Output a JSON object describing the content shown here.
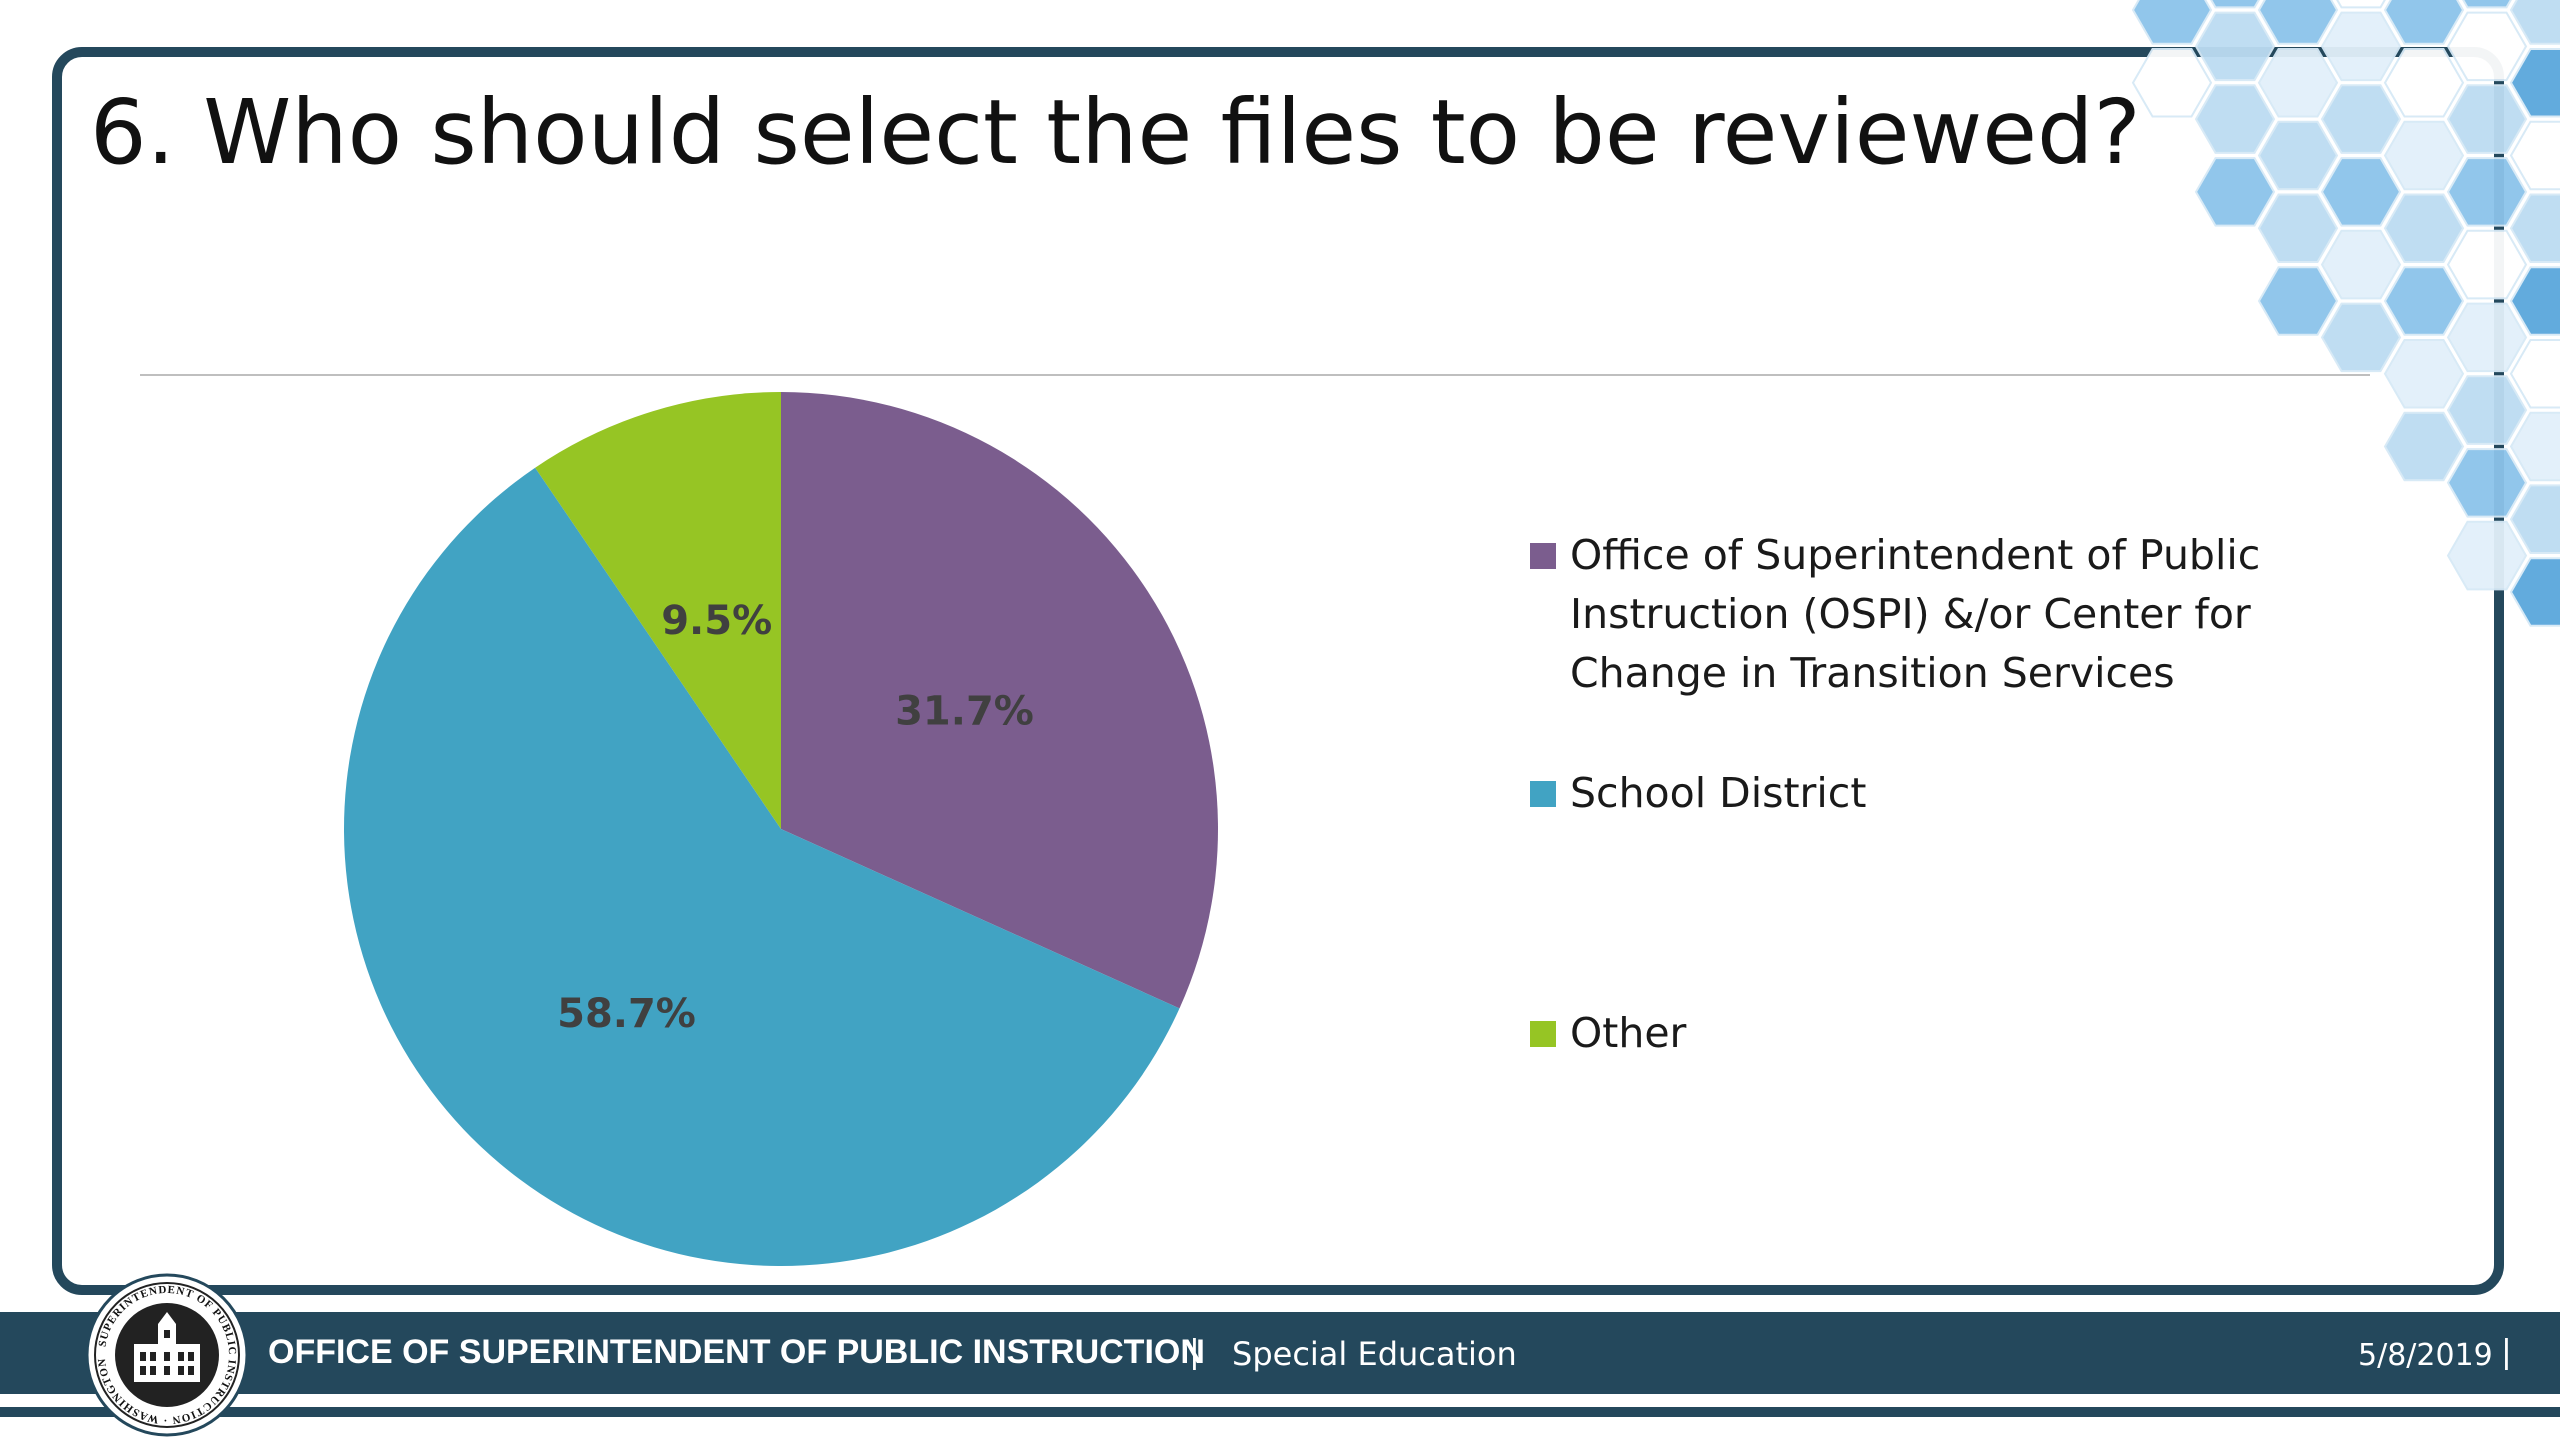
{
  "slide": {
    "title": "6. Who should select the files to be reviewed?"
  },
  "chart_data": {
    "type": "pie",
    "title": "",
    "categories": [
      "Office of Superintendent of Public Instruction (OSPI) &/or Center for Change in Transition Services",
      "School District",
      "Other"
    ],
    "values": [
      31.7,
      58.7,
      9.5
    ],
    "data_labels": [
      "31.7%",
      "58.7%",
      "9.5%"
    ],
    "colors": [
      "#7b5d8e",
      "#41a3c3",
      "#96c524"
    ],
    "start_angle": "12 o'clock",
    "direction": "clockwise",
    "legend_position": "right",
    "label_color": "#404040"
  },
  "footer": {
    "org": "OFFICE OF SUPERINTENDENT OF PUBLIC INSTRUCTION",
    "separator": "|",
    "department": "Special Education",
    "date": "5/8/2019",
    "date_separator": "|"
  },
  "logo": {
    "name": "washington-state-seal-icon",
    "text": "SUPERINTENDENT OF PUBLIC INSTRUCTION WASHINGTON"
  },
  "theme": {
    "frame_color": "#24485c",
    "hex_colors": [
      "#5aa7dc",
      "#8cc3ea",
      "#bcdcf2",
      "#e2f0fa"
    ]
  }
}
